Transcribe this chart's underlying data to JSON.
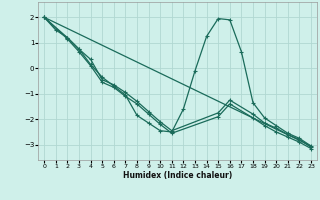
{
  "xlabel": "Humidex (Indice chaleur)",
  "background_color": "#cff0ea",
  "grid_color": "#b0d8d2",
  "line_color": "#1a6b5a",
  "xlim": [
    -0.5,
    23.5
  ],
  "ylim": [
    -3.6,
    2.6
  ],
  "yticks": [
    -3,
    -2,
    -1,
    0,
    1,
    2
  ],
  "xticks": [
    0,
    1,
    2,
    3,
    4,
    5,
    6,
    7,
    8,
    9,
    10,
    11,
    12,
    13,
    14,
    15,
    16,
    17,
    18,
    19,
    20,
    21,
    22,
    23
  ],
  "line1_x": [
    0,
    1,
    2,
    3,
    4,
    5,
    6,
    7,
    8,
    9,
    10,
    11,
    12,
    13,
    14,
    15,
    16,
    17,
    18,
    19,
    20,
    21,
    22,
    23
  ],
  "line1_y": [
    2.0,
    1.5,
    1.2,
    0.75,
    0.15,
    -0.35,
    -0.7,
    -1.05,
    -1.85,
    -2.15,
    -2.45,
    -2.5,
    -1.6,
    -0.1,
    1.25,
    1.95,
    1.9,
    0.65,
    -1.35,
    -1.95,
    -2.25,
    -2.55,
    -2.75,
    -3.05
  ],
  "line2_x": [
    0,
    2,
    3,
    4,
    5,
    6,
    7,
    8,
    9,
    10,
    11,
    15,
    16,
    18,
    19,
    20,
    21,
    22,
    23
  ],
  "line2_y": [
    2.0,
    1.2,
    0.75,
    0.35,
    -0.45,
    -0.65,
    -0.95,
    -1.3,
    -1.7,
    -2.1,
    -2.45,
    -1.75,
    -1.25,
    -1.8,
    -2.15,
    -2.35,
    -2.6,
    -2.8,
    -3.1
  ],
  "line3_x": [
    0,
    2,
    3,
    4,
    5,
    6,
    7,
    8,
    9,
    10,
    11,
    15,
    16,
    18,
    19,
    20,
    21,
    22,
    23
  ],
  "line3_y": [
    2.0,
    1.15,
    0.65,
    0.1,
    -0.55,
    -0.75,
    -1.1,
    -1.4,
    -1.8,
    -2.2,
    -2.55,
    -1.9,
    -1.4,
    -1.95,
    -2.25,
    -2.5,
    -2.7,
    -2.9,
    -3.15
  ],
  "line4_x": [
    0,
    23
  ],
  "line4_y": [
    2.0,
    -3.05
  ]
}
